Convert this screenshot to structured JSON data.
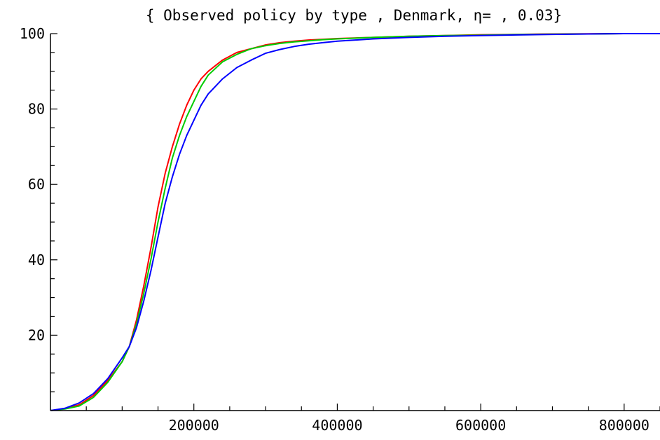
{
  "chart_data": {
    "type": "line",
    "title": "{ Observed policy by type , Denmark, η= , 0.03}",
    "xlabel": "",
    "ylabel": "",
    "xlim": [
      0,
      850000
    ],
    "ylim": [
      0,
      100
    ],
    "x_ticks": [
      200000,
      400000,
      600000,
      800000
    ],
    "x_tick_labels": [
      "200000",
      "400000",
      "600000",
      "800000"
    ],
    "y_ticks": [
      20,
      40,
      60,
      80,
      100
    ],
    "y_tick_labels": [
      "20",
      "40",
      "60",
      "80",
      "100"
    ],
    "grid": false,
    "legend": "none",
    "series": [
      {
        "color": "#ff0000",
        "x": [
          0,
          20000,
          40000,
          60000,
          80000,
          100000,
          110000,
          120000,
          130000,
          140000,
          150000,
          160000,
          170000,
          180000,
          190000,
          200000,
          210000,
          220000,
          240000,
          260000,
          280000,
          300000,
          320000,
          340000,
          360000,
          380000,
          400000,
          450000,
          500000,
          550000,
          600000,
          650000,
          700000,
          750000,
          800000,
          850000
        ],
        "y": [
          0,
          0.5,
          1.5,
          4,
          8,
          13,
          17,
          24,
          33,
          43,
          54,
          63,
          70,
          76,
          81,
          85,
          88,
          90,
          93,
          95,
          96,
          97,
          97.6,
          98,
          98.3,
          98.5,
          98.7,
          99,
          99.3,
          99.5,
          99.7,
          99.8,
          99.9,
          99.95,
          100,
          100
        ]
      },
      {
        "color": "#00cc00",
        "x": [
          0,
          20000,
          40000,
          60000,
          80000,
          100000,
          110000,
          120000,
          130000,
          140000,
          150000,
          160000,
          170000,
          180000,
          190000,
          200000,
          210000,
          220000,
          240000,
          260000,
          280000,
          300000,
          320000,
          340000,
          360000,
          380000,
          400000,
          450000,
          500000,
          550000,
          600000,
          650000,
          700000,
          750000,
          800000,
          850000
        ],
        "y": [
          0,
          0.4,
          1.2,
          3.5,
          7.5,
          13,
          17,
          23,
          31,
          40,
          50,
          59,
          67,
          73,
          78,
          82,
          86,
          89,
          92.5,
          94.5,
          96,
          96.8,
          97.4,
          97.8,
          98.1,
          98.4,
          98.6,
          99,
          99.3,
          99.5,
          99.6,
          99.75,
          99.85,
          99.9,
          100,
          100
        ]
      },
      {
        "color": "#0000ff",
        "x": [
          0,
          20000,
          40000,
          60000,
          80000,
          100000,
          110000,
          120000,
          130000,
          140000,
          150000,
          160000,
          170000,
          180000,
          190000,
          200000,
          210000,
          220000,
          240000,
          260000,
          280000,
          300000,
          320000,
          340000,
          360000,
          380000,
          400000,
          450000,
          500000,
          550000,
          600000,
          650000,
          700000,
          750000,
          800000,
          850000
        ],
        "y": [
          0,
          0.6,
          2,
          4.5,
          8.5,
          14,
          17,
          22,
          29,
          37,
          46,
          55,
          62,
          68,
          73,
          77,
          81,
          84,
          88,
          91,
          93,
          94.8,
          95.8,
          96.6,
          97.2,
          97.6,
          98,
          98.6,
          99,
          99.3,
          99.5,
          99.65,
          99.8,
          99.9,
          100,
          100
        ]
      }
    ]
  }
}
